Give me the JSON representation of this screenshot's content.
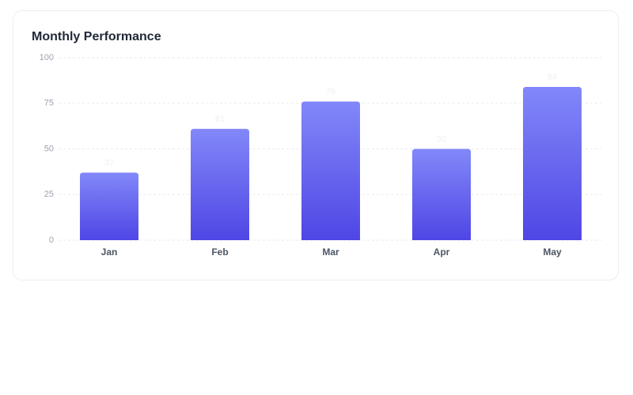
{
  "chart_data": {
    "type": "bar",
    "title": "Monthly Performance",
    "categories": [
      "Jan",
      "Feb",
      "Mar",
      "Apr",
      "May"
    ],
    "values": [
      37,
      61,
      76,
      50,
      84
    ],
    "gradient": [
      "#8288f9",
      "#4f46e5"
    ],
    "ylim": [
      0,
      100
    ],
    "yticks": [
      0,
      25,
      50,
      75,
      100
    ],
    "grid": true
  }
}
